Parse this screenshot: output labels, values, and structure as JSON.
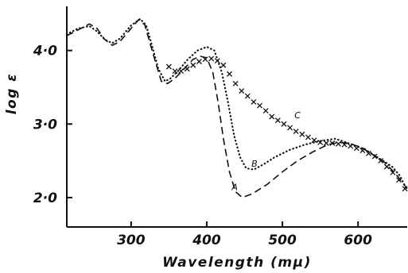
{
  "chart_data": {
    "type": "line",
    "title": "",
    "xlabel": "Wavelength (mμ)",
    "ylabel": "log ε",
    "xlim": [
      215,
      665
    ],
    "ylim": [
      1.6,
      4.6
    ],
    "x_ticks": [
      300,
      400,
      500,
      600
    ],
    "y_ticks": [
      2.0,
      3.0,
      4.0
    ],
    "x_tick_labels": [
      "300",
      "400",
      "500",
      "600"
    ],
    "y_tick_labels": [
      "2·0",
      "3·0",
      "4·0"
    ],
    "grid": false,
    "legend": "none",
    "series": [
      {
        "name": "A",
        "style": "dashed",
        "label_at": [
          437,
          2.1
        ],
        "points": [
          [
            215,
            4.2
          ],
          [
            230,
            4.28
          ],
          [
            245,
            4.36
          ],
          [
            255,
            4.3
          ],
          [
            265,
            4.15
          ],
          [
            275,
            4.07
          ],
          [
            285,
            4.12
          ],
          [
            300,
            4.3
          ],
          [
            310,
            4.42
          ],
          [
            318,
            4.35
          ],
          [
            325,
            4.1
          ],
          [
            332,
            3.85
          ],
          [
            340,
            3.58
          ],
          [
            348,
            3.55
          ],
          [
            358,
            3.62
          ],
          [
            370,
            3.75
          ],
          [
            382,
            3.88
          ],
          [
            392,
            3.92
          ],
          [
            400,
            3.9
          ],
          [
            408,
            3.7
          ],
          [
            415,
            3.3
          ],
          [
            422,
            2.8
          ],
          [
            430,
            2.35
          ],
          [
            438,
            2.08
          ],
          [
            447,
            2.0
          ],
          [
            460,
            2.05
          ],
          [
            480,
            2.18
          ],
          [
            500,
            2.35
          ],
          [
            520,
            2.5
          ],
          [
            540,
            2.62
          ],
          [
            560,
            2.72
          ],
          [
            575,
            2.75
          ],
          [
            590,
            2.73
          ],
          [
            605,
            2.68
          ],
          [
            620,
            2.58
          ],
          [
            635,
            2.48
          ],
          [
            650,
            2.32
          ],
          [
            665,
            2.12
          ]
        ]
      },
      {
        "name": "B",
        "style": "dotted",
        "label_at": [
          463,
          2.42
        ],
        "points": [
          [
            215,
            4.22
          ],
          [
            230,
            4.3
          ],
          [
            245,
            4.33
          ],
          [
            255,
            4.26
          ],
          [
            265,
            4.15
          ],
          [
            275,
            4.1
          ],
          [
            285,
            4.16
          ],
          [
            300,
            4.34
          ],
          [
            312,
            4.43
          ],
          [
            320,
            4.34
          ],
          [
            328,
            4.05
          ],
          [
            336,
            3.75
          ],
          [
            345,
            3.58
          ],
          [
            352,
            3.62
          ],
          [
            362,
            3.72
          ],
          [
            375,
            3.88
          ],
          [
            388,
            4.0
          ],
          [
            400,
            4.05
          ],
          [
            410,
            4.0
          ],
          [
            420,
            3.7
          ],
          [
            428,
            3.3
          ],
          [
            436,
            2.85
          ],
          [
            444,
            2.55
          ],
          [
            452,
            2.4
          ],
          [
            462,
            2.38
          ],
          [
            475,
            2.45
          ],
          [
            490,
            2.55
          ],
          [
            510,
            2.65
          ],
          [
            530,
            2.72
          ],
          [
            550,
            2.77
          ],
          [
            570,
            2.8
          ],
          [
            590,
            2.73
          ],
          [
            610,
            2.65
          ],
          [
            630,
            2.52
          ],
          [
            645,
            2.42
          ],
          [
            655,
            2.3
          ],
          [
            665,
            2.1
          ]
        ]
      },
      {
        "name": "C",
        "style": "cross",
        "label_at": [
          520,
          3.08
        ],
        "points": [
          [
            350,
            3.78
          ],
          [
            358,
            3.72
          ],
          [
            366,
            3.72
          ],
          [
            374,
            3.75
          ],
          [
            382,
            3.8
          ],
          [
            390,
            3.85
          ],
          [
            398,
            3.88
          ],
          [
            406,
            3.89
          ],
          [
            414,
            3.86
          ],
          [
            422,
            3.8
          ],
          [
            430,
            3.68
          ],
          [
            438,
            3.55
          ],
          [
            446,
            3.45
          ],
          [
            454,
            3.38
          ],
          [
            462,
            3.3
          ],
          [
            470,
            3.25
          ],
          [
            478,
            3.18
          ],
          [
            486,
            3.1
          ],
          [
            494,
            3.05
          ],
          [
            502,
            3.0
          ],
          [
            510,
            2.95
          ],
          [
            518,
            2.9
          ],
          [
            526,
            2.86
          ],
          [
            534,
            2.82
          ],
          [
            542,
            2.78
          ],
          [
            550,
            2.75
          ],
          [
            558,
            2.74
          ],
          [
            566,
            2.74
          ],
          [
            574,
            2.73
          ],
          [
            582,
            2.72
          ],
          [
            590,
            2.7
          ],
          [
            598,
            2.67
          ],
          [
            606,
            2.64
          ],
          [
            614,
            2.6
          ],
          [
            622,
            2.56
          ],
          [
            630,
            2.5
          ],
          [
            638,
            2.42
          ],
          [
            646,
            2.34
          ],
          [
            654,
            2.24
          ],
          [
            662,
            2.12
          ]
        ]
      }
    ]
  }
}
